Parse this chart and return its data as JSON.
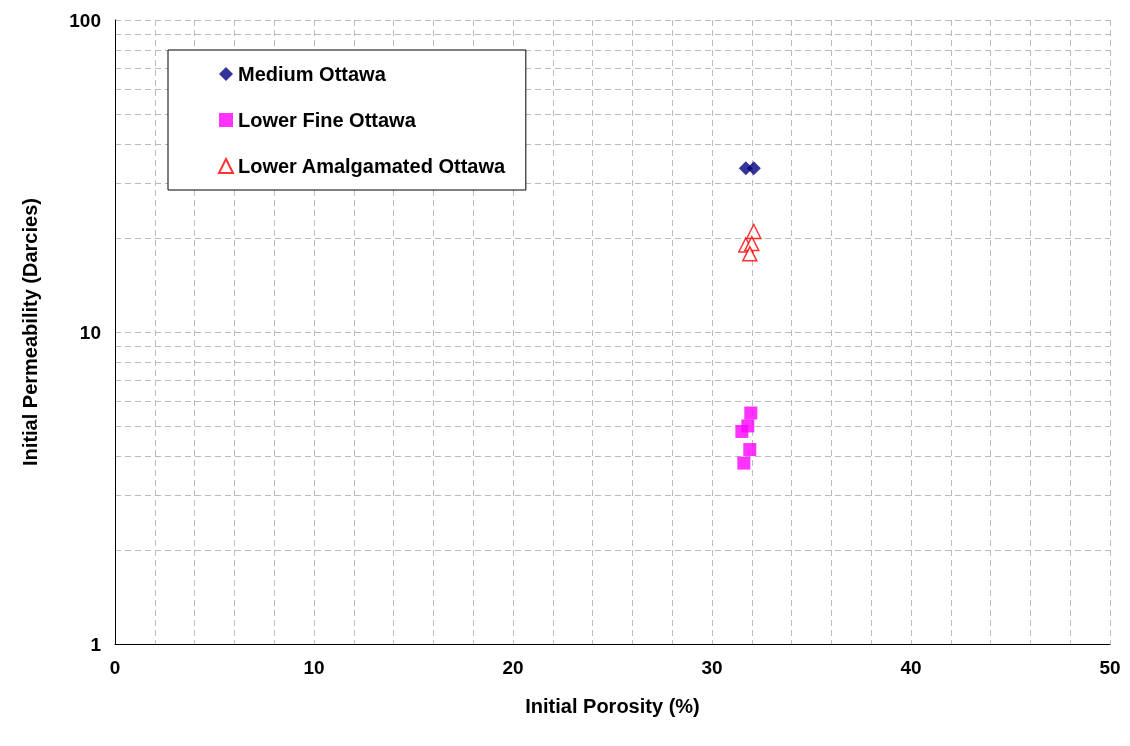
{
  "chart_data": {
    "type": "scatter",
    "xlabel": "Initial Porosity (%)",
    "ylabel": "Initial Permeability (Darcies)",
    "xlim": [
      0,
      50
    ],
    "xticks": [
      0,
      10,
      20,
      30,
      40,
      50
    ],
    "ylim": [
      1,
      100
    ],
    "yticks": [
      1,
      10,
      100
    ],
    "log": "y",
    "grid": true,
    "legend": "top left",
    "series": [
      {
        "name": "Medium Ottawa",
        "color": "#000080",
        "marker": "diamond",
        "x": [
          31.7,
          32.1
        ],
        "values": [
          33.5,
          33.5
        ]
      },
      {
        "name": "Lower Fine Ottawa",
        "color": "#ff00ff",
        "marker": "square",
        "x": [
          31.95,
          31.8,
          31.5,
          31.9,
          31.6
        ],
        "values": [
          5.5,
          5.0,
          4.8,
          4.2,
          3.8
        ]
      },
      {
        "name": "Lower Amalgamated Ottawa",
        "color": "#ff0000",
        "marker": "triangle",
        "x": [
          32.1,
          31.7,
          32.0,
          31.9
        ],
        "values": [
          21,
          19,
          19.2,
          17.8
        ]
      }
    ]
  }
}
